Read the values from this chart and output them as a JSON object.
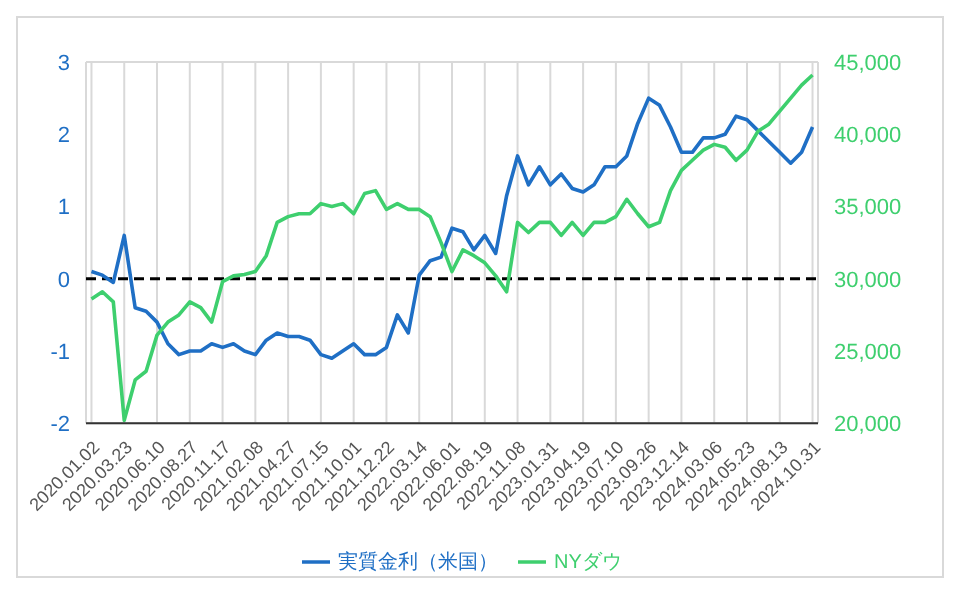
{
  "chart_data": {
    "type": "line",
    "categories": [
      "2020.01.02",
      null,
      null,
      "2020.03.23",
      null,
      null,
      "2020.06.10",
      null,
      null,
      "2020.08.27",
      null,
      null,
      "2020.11.17",
      null,
      null,
      "2021.02.08",
      null,
      null,
      "2021.04.27",
      null,
      null,
      "2021.07.15",
      null,
      null,
      "2021.10.01",
      null,
      null,
      "2021.12.22",
      null,
      null,
      "2022.03.14",
      null,
      null,
      "2022.06.01",
      null,
      null,
      "2022.08.19",
      null,
      null,
      "2022.11.08",
      null,
      null,
      "2023.01.31",
      null,
      null,
      "2023.04.19",
      null,
      null,
      "2023.07.10",
      null,
      null,
      "2023.09.26",
      null,
      null,
      "2023.12.14",
      null,
      null,
      "2024.03.06",
      null,
      null,
      "2024.05.23",
      null,
      null,
      "2024.08.13",
      null,
      null,
      "2024.10.31"
    ],
    "series": [
      {
        "name": "実質金利（米国）",
        "color": "#1f6fc5",
        "values": [
          0.1,
          0.05,
          -0.05,
          0.6,
          -0.4,
          -0.45,
          -0.6,
          -0.9,
          -1.05,
          -1.0,
          -1.0,
          -0.9,
          -0.95,
          -0.9,
          -1.0,
          -1.05,
          -0.85,
          -0.75,
          -0.8,
          -0.8,
          -0.85,
          -1.05,
          -1.1,
          -1.0,
          -0.9,
          -1.05,
          -1.05,
          -0.95,
          -0.5,
          -0.75,
          0.05,
          0.25,
          0.3,
          0.7,
          0.65,
          0.4,
          0.6,
          0.35,
          1.15,
          1.7,
          1.3,
          1.55,
          1.3,
          1.45,
          1.25,
          1.2,
          1.3,
          1.55,
          1.55,
          1.7,
          2.15,
          2.5,
          2.4,
          2.1,
          1.75,
          1.75,
          1.95,
          1.95,
          2.0,
          2.25,
          2.2,
          2.05,
          1.9,
          1.75,
          1.6,
          1.75,
          2.1
        ]
      },
      {
        "name": "NYダウ",
        "color": "#3ecf6e",
        "axis": "y2",
        "values": [
          28600,
          29100,
          28400,
          20200,
          23000,
          23600,
          26100,
          27000,
          27500,
          28400,
          28000,
          27000,
          29800,
          30200,
          30300,
          30500,
          31600,
          33900,
          34300,
          34500,
          34500,
          35200,
          35000,
          35200,
          34500,
          35900,
          36100,
          34800,
          35200,
          34800,
          34800,
          34300,
          32500,
          30500,
          32000,
          31600,
          31100,
          30200,
          29100,
          33900,
          33200,
          33900,
          33900,
          33000,
          33900,
          33000,
          33900,
          33900,
          34300,
          35500,
          34500,
          33600,
          33900,
          36100,
          37500,
          38200,
          38900,
          39300,
          39100,
          38200,
          38900,
          40200,
          40700,
          41600,
          42500,
          43400,
          44100
        ]
      }
    ],
    "ylim": [
      -2,
      3
    ],
    "yticks": [
      -2,
      -1,
      0,
      1,
      2,
      3
    ],
    "y2lim": [
      20000,
      45000
    ],
    "y2ticks": [
      {
        "value": 20000,
        "label": "20,000"
      },
      {
        "value": 25000,
        "label": "25,000"
      },
      {
        "value": 30000,
        "label": "30,000"
      },
      {
        "value": 35000,
        "label": "35,000"
      },
      {
        "value": 40000,
        "label": "40,000"
      },
      {
        "value": 45000,
        "label": "45,000"
      }
    ],
    "ref_lines": [
      {
        "axis": "y",
        "value": 0,
        "color": "#000000",
        "line_style": "dashed"
      }
    ],
    "grid": true,
    "legend": "bottom",
    "marker": "none",
    "line_style": "solid"
  }
}
